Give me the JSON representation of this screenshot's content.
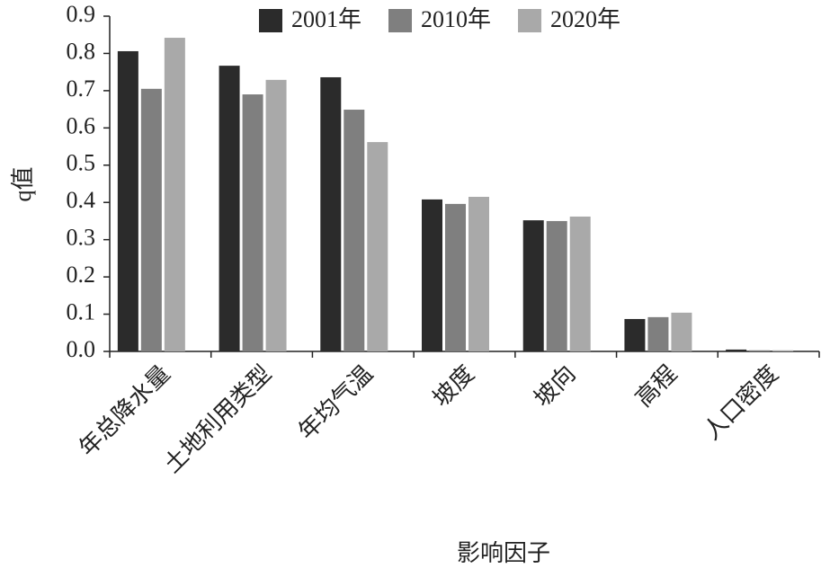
{
  "chart_data": {
    "type": "bar",
    "x_label": "影响因子",
    "y_label": "q值",
    "categories": [
      "年总降水量",
      "土地利用类型",
      "年均气温",
      "坡度",
      "坡向",
      "高程",
      "人口密度"
    ],
    "series": [
      {
        "name": "2001年",
        "color": "#2b2b2b",
        "values": [
          0.806,
          0.767,
          0.736,
          0.408,
          0.352,
          0.087,
          0.005
        ]
      },
      {
        "name": "2010年",
        "color": "#7f7f7f",
        "values": [
          0.705,
          0.69,
          0.649,
          0.396,
          0.35,
          0.092,
          0.003
        ]
      },
      {
        "name": "2020年",
        "color": "#a9a9a9",
        "values": [
          0.842,
          0.729,
          0.562,
          0.415,
          0.362,
          0.104,
          0.003
        ]
      }
    ],
    "ylim": [
      0,
      0.9
    ],
    "yticks": [
      {
        "value": 0,
        "label": "0.0"
      },
      0.1,
      0.2,
      0.3,
      0.4,
      0.5,
      0.6,
      0.7,
      0.8,
      0.9
    ],
    "grid": false,
    "legend": "top"
  }
}
